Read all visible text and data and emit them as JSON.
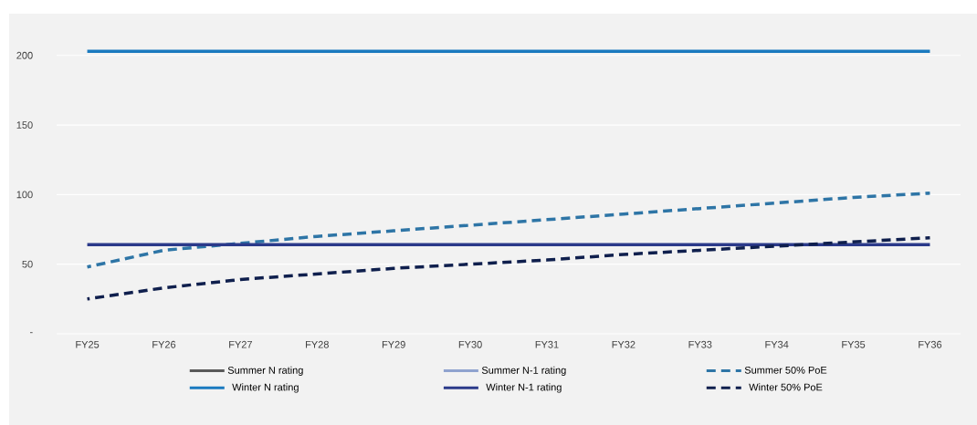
{
  "chart_data": {
    "type": "line",
    "categories": [
      "FY25",
      "FY26",
      "FY27",
      "FY28",
      "FY29",
      "FY30",
      "FY31",
      "FY32",
      "FY33",
      "FY34",
      "FY35",
      "FY36"
    ],
    "series": [
      {
        "name": "Summer N rating",
        "color": "#595959",
        "line_style": "solid",
        "values": [
          null,
          null,
          null,
          null,
          null,
          null,
          null,
          null,
          null,
          null,
          null,
          null
        ]
      },
      {
        "name": "Summer N-1 rating",
        "color": "#8fa3cf",
        "line_style": "solid",
        "values": [
          null,
          null,
          null,
          null,
          null,
          null,
          null,
          null,
          null,
          null,
          null,
          null
        ]
      },
      {
        "name": "Summer 50% PoE",
        "color": "#2e75a6",
        "line_style": "dashed",
        "values": [
          48,
          60,
          65,
          70,
          74,
          78,
          82,
          86,
          90,
          94,
          98,
          101
        ]
      },
      {
        "name": "Winter N rating",
        "color": "#1a7abf",
        "line_style": "solid",
        "values": [
          203,
          203,
          203,
          203,
          203,
          203,
          203,
          203,
          203,
          203,
          203,
          203
        ]
      },
      {
        "name": "Winter N-1 rating",
        "color": "#2b3a8a",
        "line_style": "solid",
        "values": [
          64,
          64,
          64,
          64,
          64,
          64,
          64,
          64,
          64,
          64,
          64,
          64
        ]
      },
      {
        "name": "Winter 50% PoE",
        "color": "#0f1f4d",
        "line_style": "dashed",
        "values": [
          25,
          33,
          39,
          43,
          47,
          50,
          53,
          57,
          60,
          63,
          66,
          69
        ]
      }
    ],
    "ylim": [
      0,
      230
    ],
    "yticks": [
      {
        "value": 0,
        "label": "-"
      },
      50,
      100,
      150,
      200
    ],
    "grid": "y",
    "legend": "bottom",
    "marker": "none"
  }
}
